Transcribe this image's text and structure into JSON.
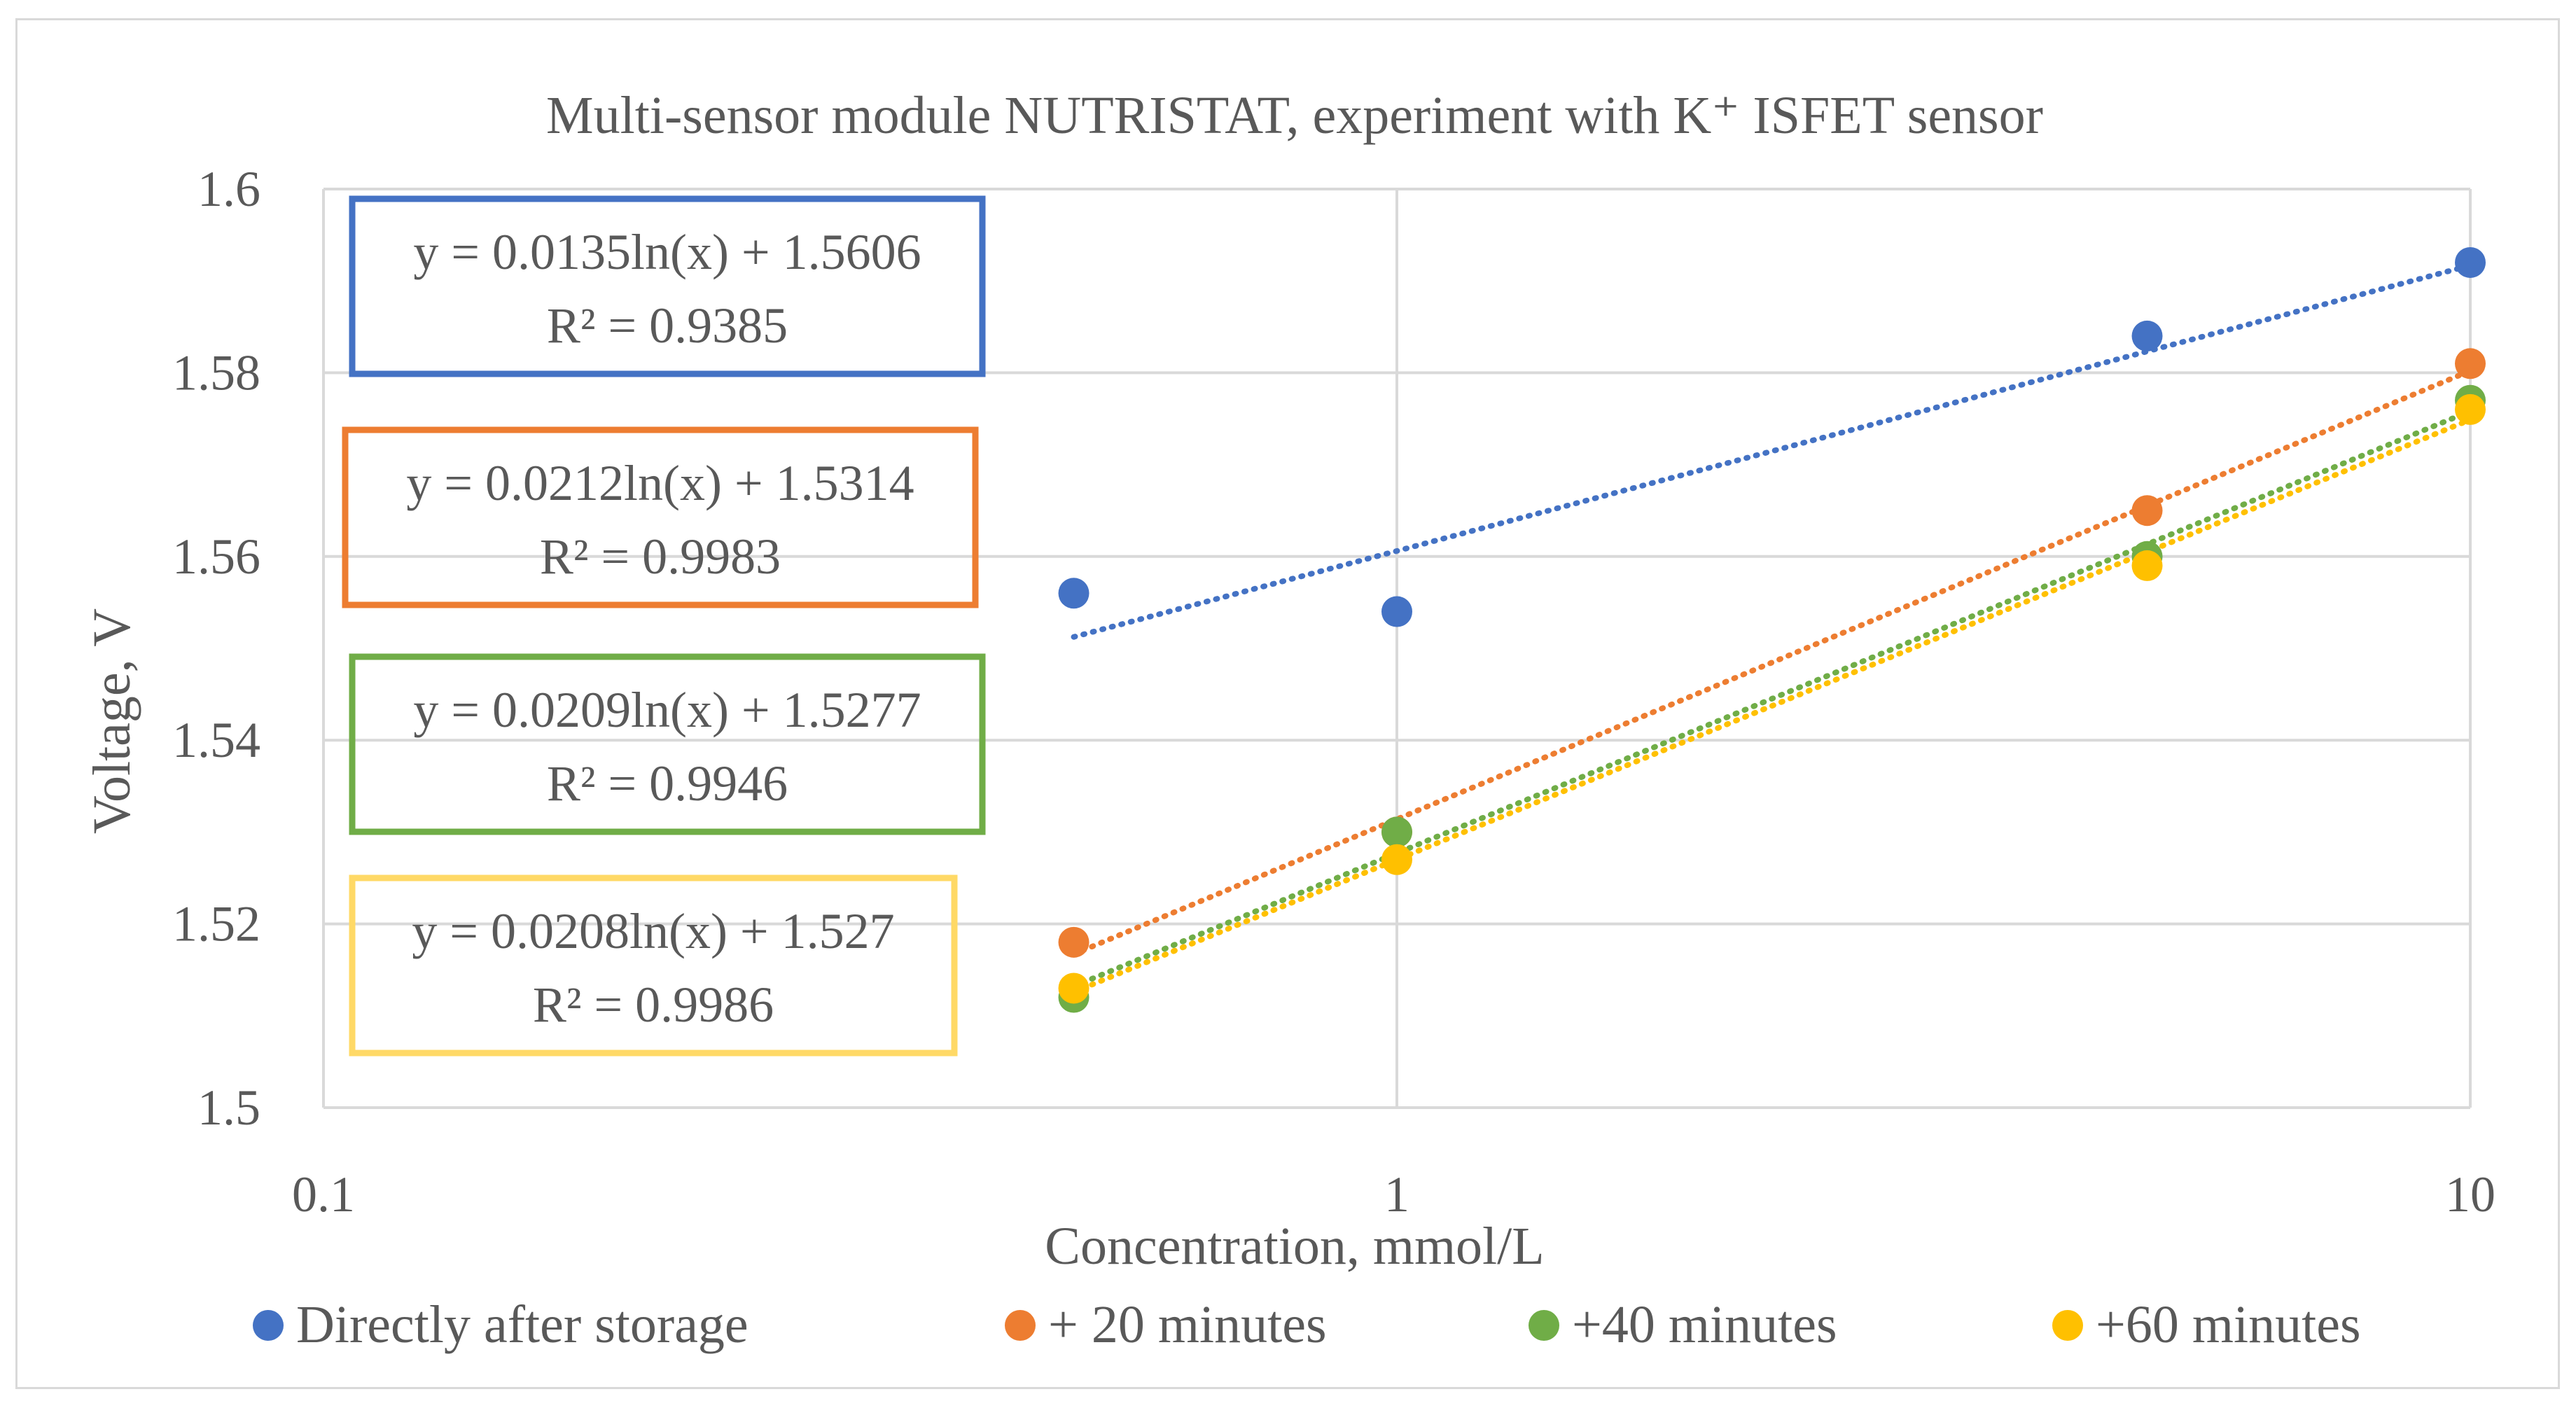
{
  "chart_data": {
    "type": "scatter",
    "title": "Multi-sensor module NUTRISTAT, experiment with K⁺ ISFET sensor",
    "xlabel": "Concentration, mmol/L",
    "ylabel": "Voltage, V",
    "x_scale": "log",
    "xlim": [
      0.1,
      10
    ],
    "ylim": [
      1.5,
      1.6
    ],
    "grid": true,
    "legend_position": "bottom",
    "x_ticks": [
      0.1,
      1,
      10
    ],
    "x_tick_labels": [
      "0.1",
      "1",
      "10"
    ],
    "y_ticks": [
      1.5,
      1.52,
      1.54,
      1.56,
      1.58,
      1.6
    ],
    "y_tick_labels": [
      "1.5",
      "1.52",
      "1.54",
      "1.56",
      "1.58",
      "1.6"
    ],
    "series": [
      {
        "name": "Directly after storage",
        "color": "#4472C4",
        "x": [
          0.5,
          1,
          5,
          10
        ],
        "y": [
          1.556,
          1.554,
          1.584,
          1.592
        ],
        "trendline": {
          "type": "log",
          "a": 0.0135,
          "b": 1.5606
        },
        "equation": "y = 0.0135ln(x) + 1.5606",
        "r2": "R² = 0.9385"
      },
      {
        "name": "+ 20 minutes",
        "color": "#ED7D31",
        "x": [
          0.5,
          1,
          5,
          10
        ],
        "y": [
          1.518,
          1.53,
          1.565,
          1.581
        ],
        "trendline": {
          "type": "log",
          "a": 0.0212,
          "b": 1.5314
        },
        "equation": "y = 0.0212ln(x) + 1.5314",
        "r2": "R² = 0.9983"
      },
      {
        "name": "+40 minutes",
        "color": "#70AD47",
        "x": [
          0.5,
          1,
          5,
          10
        ],
        "y": [
          1.512,
          1.53,
          1.56,
          1.577
        ],
        "trendline": {
          "type": "log",
          "a": 0.0209,
          "b": 1.5277
        },
        "equation": "y = 0.0209ln(x) + 1.5277",
        "r2": "R² = 0.9946"
      },
      {
        "name": "+60 minutes",
        "color": "#FFC000",
        "box_color": "#FFD966",
        "x": [
          0.5,
          1,
          5,
          10
        ],
        "y": [
          1.513,
          1.527,
          1.559,
          1.576
        ],
        "trendline": {
          "type": "log",
          "a": 0.0208,
          "b": 1.527
        },
        "equation": "y = 0.0208ln(x) + 1.527",
        "r2": "R² = 0.9986"
      }
    ]
  }
}
